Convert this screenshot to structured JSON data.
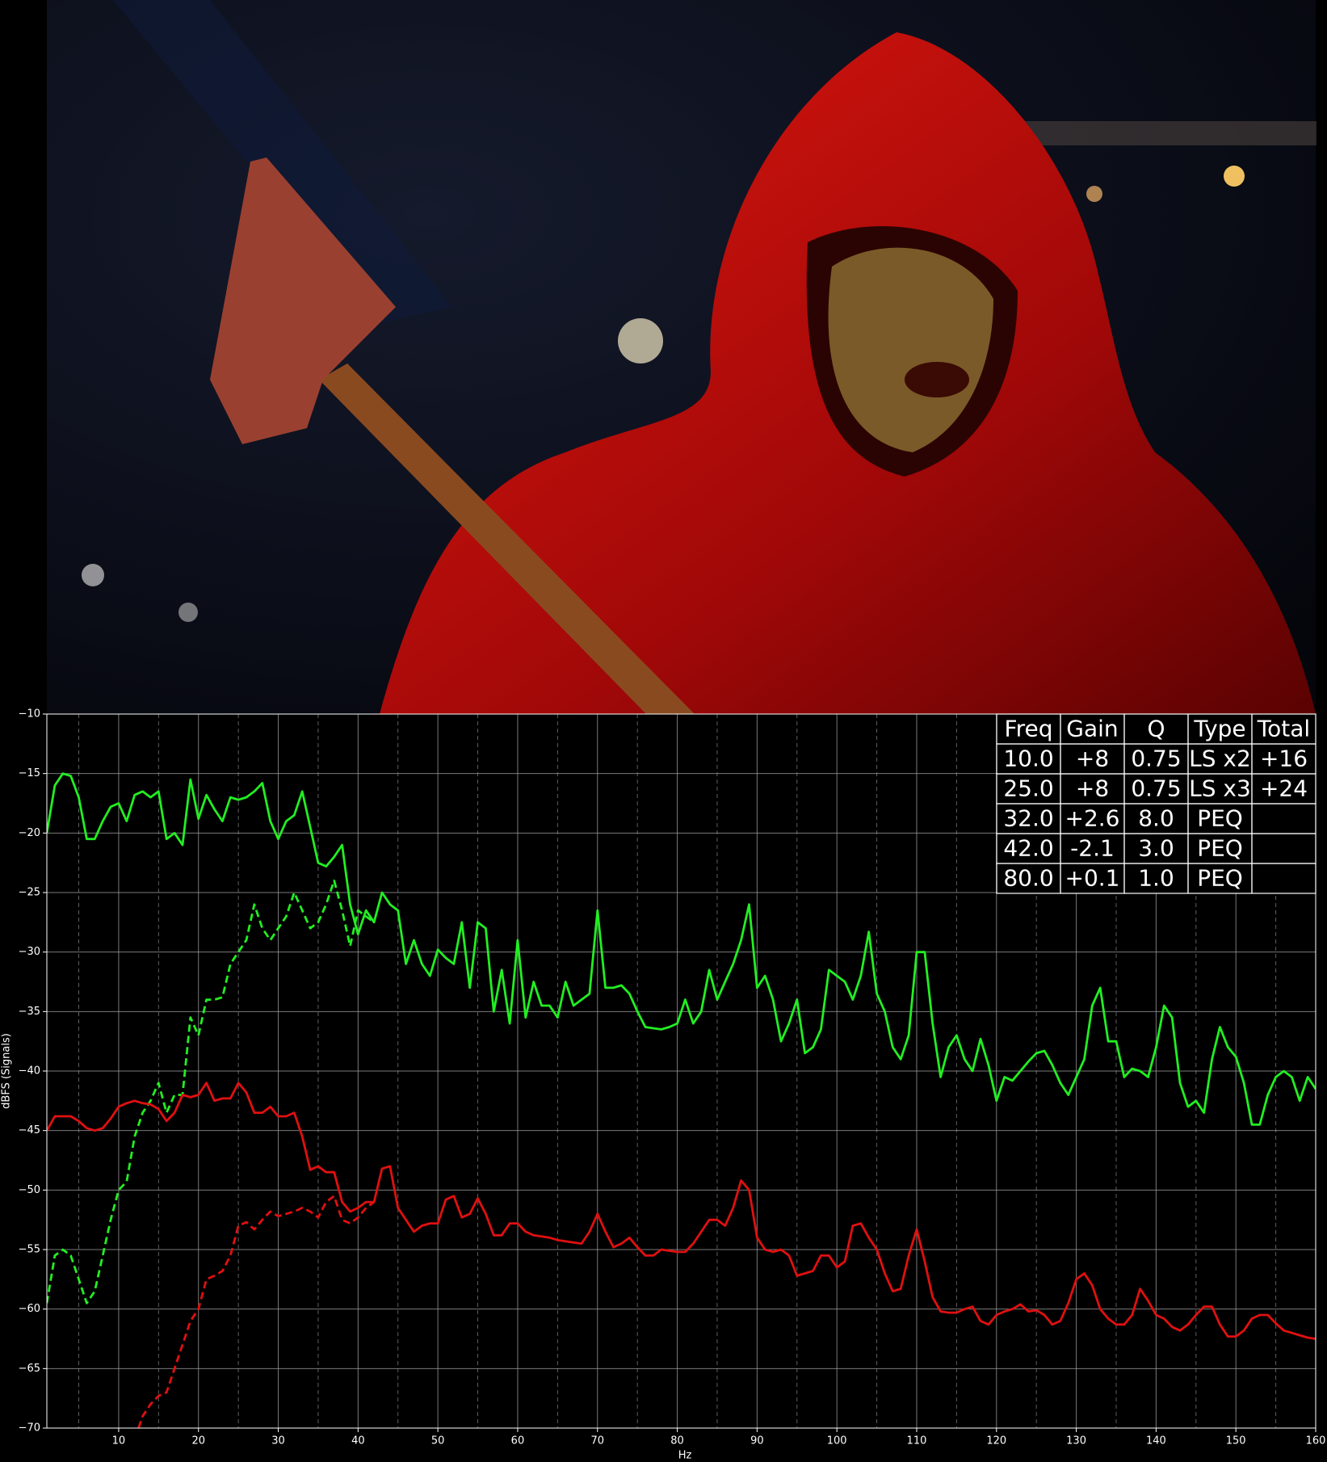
{
  "chart_data": {
    "type": "line",
    "xlabel": "Hz",
    "ylabel": "dBFS (Signals)",
    "xlim": [
      1,
      160
    ],
    "ylim": [
      -70,
      -10
    ],
    "xticks": [
      10,
      20,
      30,
      40,
      50,
      60,
      70,
      80,
      90,
      100,
      110,
      120,
      130,
      140,
      150,
      160
    ],
    "xminorticks": [
      5,
      15,
      25,
      35,
      45,
      55,
      65,
      75,
      85,
      95,
      105,
      115,
      125,
      135,
      145,
      155
    ],
    "yticks": [
      {
        "value": -70,
        "label": "−70"
      },
      {
        "value": -65,
        "label": "−65"
      },
      {
        "value": -60,
        "label": "−60"
      },
      {
        "value": -55,
        "label": "−55"
      },
      {
        "value": -50,
        "label": "−50"
      },
      {
        "value": -45,
        "label": "−45"
      },
      {
        "value": -40,
        "label": "−40"
      },
      {
        "value": -35,
        "label": "−35"
      },
      {
        "value": -30,
        "label": "−30"
      },
      {
        "value": -25,
        "label": "−25"
      },
      {
        "value": -20,
        "label": "−20"
      },
      {
        "value": -15,
        "label": "−15"
      },
      {
        "value": -10,
        "label": "−10"
      }
    ],
    "grid": true,
    "series": [
      {
        "color": "#22ee22",
        "dashed": false,
        "x": [
          1,
          2,
          3,
          4,
          5,
          6,
          7,
          8,
          9,
          10,
          11,
          12,
          13,
          14,
          15,
          16,
          17,
          18,
          19,
          20,
          21,
          22,
          23,
          24,
          25,
          26,
          27,
          28,
          29,
          30,
          31,
          32,
          33,
          34,
          35,
          36,
          37,
          38,
          39,
          40,
          41,
          42,
          43,
          44,
          45,
          46,
          47,
          48,
          49,
          50,
          51,
          52,
          53,
          54,
          55,
          56,
          57,
          58,
          59,
          60,
          61,
          62,
          63,
          64,
          65,
          66,
          67,
          68,
          69,
          70,
          71,
          72,
          73,
          74,
          75,
          76,
          77,
          78,
          79,
          80,
          81,
          82,
          83,
          84,
          85,
          86,
          87,
          88,
          89,
          90,
          91,
          92,
          93,
          94,
          95,
          96,
          97,
          98,
          99,
          100,
          101,
          102,
          103,
          104,
          105,
          106,
          107,
          108,
          109,
          110,
          111,
          112,
          113,
          114,
          115,
          116,
          117,
          118,
          119,
          120,
          121,
          122,
          123,
          124,
          125,
          126,
          127,
          128,
          129,
          130,
          131,
          132,
          133,
          134,
          135,
          136,
          137,
          138,
          139,
          140,
          141,
          142,
          143,
          144,
          145,
          146,
          147,
          148,
          149,
          150,
          151,
          152,
          153,
          154,
          155,
          156,
          157,
          158,
          159,
          160
        ],
        "values": [
          -20,
          -16,
          -15,
          -15.2,
          -17,
          -20.5,
          -20.5,
          -19,
          -17.8,
          -17.5,
          -19,
          -16.8,
          -16.5,
          -17,
          -16.5,
          -20.5,
          -20,
          -21,
          -15.5,
          -18.8,
          -16.8,
          -18,
          -19,
          -17,
          -17.2,
          -17,
          -16.5,
          -15.8,
          -19,
          -20.5,
          -19,
          -18.5,
          -16.5,
          -19.5,
          -22.5,
          -22.8,
          -22,
          -21,
          -26,
          -28.5,
          -26.5,
          -27.5,
          -25,
          -26,
          -26.5,
          -31,
          -29,
          -31,
          -32,
          -29.8,
          -30.5,
          -31,
          -27.5,
          -33,
          -27.5,
          -28,
          -35,
          -31.5,
          -36,
          -29,
          -35.5,
          -32.5,
          -34.5,
          -34.5,
          -35.5,
          -32.5,
          -34.5,
          -34,
          -33.5,
          -26.5,
          -33,
          -33,
          -32.8,
          -33.5,
          -35,
          -36.3,
          -36.4,
          -36.5,
          -36.3,
          -36,
          -34,
          -36,
          -35,
          -31.5,
          -34,
          -32.5,
          -31,
          -29,
          -26,
          -33,
          -32,
          -34,
          -37.5,
          -36,
          -34,
          -38.5,
          -38,
          -36.5,
          -31.5,
          -32,
          -32.5,
          -34,
          -32,
          -28.3,
          -33.5,
          -35,
          -38,
          -39,
          -37,
          -30,
          -30,
          -36,
          -40.5,
          -38,
          -37,
          -39,
          -40,
          -37.3,
          -39.5,
          -42.5,
          -40.5,
          -40.8,
          -40,
          -39.2,
          -38.5,
          -38.3,
          -39.5,
          -41,
          -42,
          -40.5,
          -39,
          -34.5,
          -33,
          -37.5,
          -37.5,
          -40.5,
          -39.8,
          -40,
          -40.5,
          -38,
          -34.5,
          -35.5,
          -41,
          -43,
          -42.5,
          -43.5,
          -39,
          -36.3,
          -38,
          -38.8,
          -41,
          -44.5,
          -44.5,
          -42,
          -40.5,
          -40,
          -40.5,
          -42.5,
          -40.5,
          -41.5
        ]
      },
      {
        "color": "#22ee22",
        "dashed": true,
        "x": [
          1,
          2,
          3,
          4,
          5,
          6,
          7,
          8,
          9,
          10,
          11,
          12,
          13,
          14,
          15,
          16,
          17,
          18,
          19,
          20,
          21,
          22,
          23,
          24,
          25,
          26,
          27,
          28,
          29,
          30,
          31,
          32,
          33,
          34,
          35,
          36,
          37,
          38,
          39,
          40,
          41,
          42
        ],
        "values": [
          -59.5,
          -55.5,
          -55,
          -55.5,
          -57.5,
          -59.5,
          -58.5,
          -55.5,
          -52.5,
          -50,
          -49.3,
          -45.5,
          -43.5,
          -42.5,
          -41,
          -43.5,
          -42,
          -42,
          -35.5,
          -37,
          -34,
          -34,
          -33.8,
          -31,
          -30,
          -29,
          -26,
          -28,
          -29,
          -28,
          -27,
          -25,
          -26.5,
          -28,
          -27.5,
          -26,
          -24,
          -26.5,
          -29.5,
          -26.5,
          -27,
          -27.5
        ]
      },
      {
        "color": "#e01010",
        "dashed": false,
        "x": [
          1,
          2,
          3,
          4,
          5,
          6,
          7,
          8,
          9,
          10,
          11,
          12,
          13,
          14,
          15,
          16,
          17,
          18,
          19,
          20,
          21,
          22,
          23,
          24,
          25,
          26,
          27,
          28,
          29,
          30,
          31,
          32,
          33,
          34,
          35,
          36,
          37,
          38,
          39,
          40,
          41,
          42,
          43,
          44,
          45,
          46,
          47,
          48,
          49,
          50,
          51,
          52,
          53,
          54,
          55,
          56,
          57,
          58,
          59,
          60,
          61,
          62,
          63,
          64,
          65,
          66,
          67,
          68,
          69,
          70,
          71,
          72,
          73,
          74,
          75,
          76,
          77,
          78,
          79,
          80,
          81,
          82,
          83,
          84,
          85,
          86,
          87,
          88,
          89,
          90,
          91,
          92,
          93,
          94,
          95,
          96,
          97,
          98,
          99,
          100,
          101,
          102,
          103,
          104,
          105,
          106,
          107,
          108,
          109,
          110,
          111,
          112,
          113,
          114,
          115,
          116,
          117,
          118,
          119,
          120,
          121,
          122,
          123,
          124,
          125,
          126,
          127,
          128,
          129,
          130,
          131,
          132,
          133,
          134,
          135,
          136,
          137,
          138,
          139,
          140,
          141,
          142,
          143,
          144,
          145,
          146,
          147,
          148,
          149,
          150,
          151,
          152,
          153,
          154,
          155,
          156,
          157,
          158,
          159,
          160
        ],
        "values": [
          -45,
          -43.8,
          -43.8,
          -43.8,
          -44.2,
          -44.8,
          -45,
          -44.8,
          -44,
          -43,
          -42.7,
          -42.5,
          -42.7,
          -42.8,
          -43.2,
          -44.2,
          -43.5,
          -42,
          -42.2,
          -42,
          -41,
          -42.5,
          -42.3,
          -42.3,
          -41,
          -41.8,
          -43.5,
          -43.5,
          -43,
          -43.8,
          -43.8,
          -43.5,
          -45.5,
          -48.3,
          -48,
          -48.5,
          -48.5,
          -51,
          -51.8,
          -51.5,
          -51,
          -51,
          -48.2,
          -48,
          -51.5,
          -52.5,
          -53.5,
          -53,
          -52.8,
          -52.8,
          -50.8,
          -50.5,
          -52.3,
          -52,
          -50.7,
          -52,
          -53.8,
          -53.8,
          -52.8,
          -52.8,
          -53.5,
          -53.8,
          -53.9,
          -54,
          -54.2,
          -54.3,
          -54.4,
          -54.5,
          -53.5,
          -52,
          -53.5,
          -54.8,
          -54.5,
          -54,
          -54.8,
          -55.5,
          -55.5,
          -55,
          -55.1,
          -55.2,
          -55.2,
          -54.5,
          -53.5,
          -52.5,
          -52.5,
          -53,
          -51.5,
          -49.2,
          -50,
          -54,
          -55,
          -55.2,
          -55,
          -55.5,
          -57.2,
          -57,
          -56.8,
          -55.5,
          -55.5,
          -56.5,
          -56,
          -53,
          -52.8,
          -54,
          -55,
          -57,
          -58.5,
          -58.3,
          -55.5,
          -53.3,
          -56,
          -59,
          -60.2,
          -60.3,
          -60.3,
          -60,
          -59.8,
          -61,
          -61.3,
          -60.5,
          -60.2,
          -60,
          -59.6,
          -60.2,
          -60.1,
          -60.5,
          -61.3,
          -61,
          -59.5,
          -57.5,
          -57,
          -58,
          -60,
          -60.8,
          -61.3,
          -61.3,
          -60.5,
          -58.3,
          -59.3,
          -60.5,
          -60.8,
          -61.5,
          -61.8,
          -61.3,
          -60.5,
          -59.8,
          -59.8,
          -61.3,
          -62.3,
          -62.3,
          -61.8,
          -60.8,
          -60.5,
          -60.5,
          -61.2,
          -61.8,
          -62,
          -62.2,
          -62.4,
          -62.5
        ]
      },
      {
        "color": "#e01010",
        "dashed": true,
        "x": [
          12.5,
          13,
          14,
          15,
          16,
          17,
          18,
          19,
          20,
          21,
          22,
          23,
          24,
          25,
          26,
          27,
          28,
          29,
          30,
          31,
          32,
          33,
          34,
          35,
          36,
          37,
          38,
          39,
          40,
          41,
          42
        ],
        "values": [
          -70,
          -69,
          -68,
          -67.3,
          -67,
          -65,
          -63,
          -61,
          -60,
          -57.5,
          -57.2,
          -56.8,
          -55.5,
          -53,
          -52.7,
          -53.3,
          -52.5,
          -51.8,
          -52.2,
          -52,
          -51.8,
          -51.5,
          -51.8,
          -52.3,
          -51,
          -50.5,
          -52.5,
          -52.8,
          -52.3,
          -51.5,
          -51
        ]
      }
    ],
    "table": {
      "header": [
        "Freq",
        "Gain",
        "Q",
        "Type",
        "Total"
      ],
      "rows": [
        [
          "10.0",
          "+8",
          "0.75",
          "LS x2",
          "+16"
        ],
        [
          "25.0",
          "+8",
          "0.75",
          "LS x3",
          "+24"
        ],
        [
          "32.0",
          "+2.6",
          "8.0",
          "PEQ"
        ],
        [
          "42.0",
          "-2.1",
          "3.0",
          "PEQ"
        ],
        [
          "80.0",
          "+0.1",
          "1.0",
          "PEQ"
        ]
      ]
    }
  }
}
